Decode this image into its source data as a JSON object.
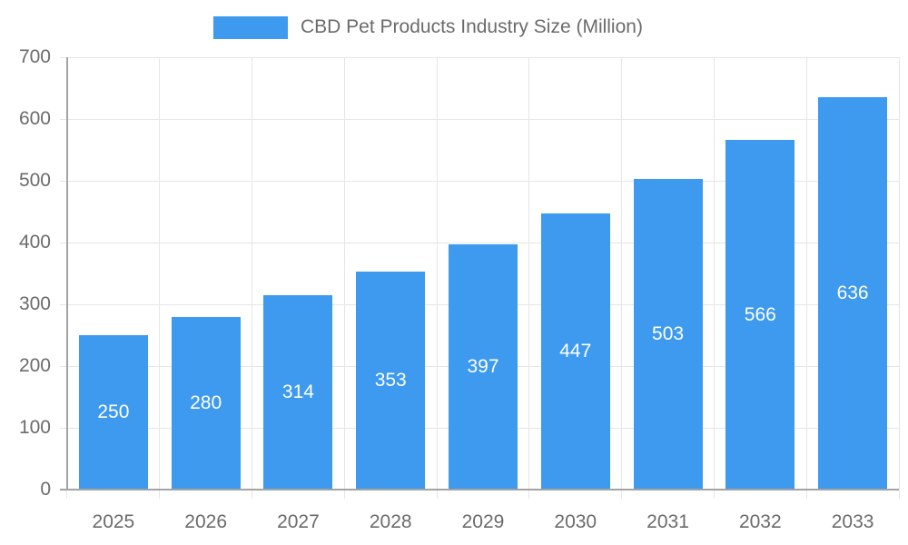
{
  "legend": {
    "label": "CBD Pet Products Industry Size (Million)"
  },
  "chart_data": {
    "type": "bar",
    "title": "CBD Pet Products Industry Size (Million)",
    "categories": [
      "2025",
      "2026",
      "2027",
      "2028",
      "2029",
      "2030",
      "2031",
      "2032",
      "2033"
    ],
    "values": [
      250,
      280,
      314,
      353,
      397,
      447,
      503,
      566,
      636
    ],
    "xlabel": "",
    "ylabel": "",
    "ylim": [
      0,
      700
    ],
    "ytick_step": 100,
    "ytick_labels": [
      "0",
      "100",
      "200",
      "300",
      "400",
      "500",
      "600",
      "700"
    ],
    "grid": true,
    "legend_position": "top",
    "value_labels": "inside-center",
    "colors": {
      "bar": "#3D9AEE",
      "value_label": "#FFFFFF",
      "axis_text": "#6B6B6B",
      "grid_line": "#E6E6E6",
      "axis_line": "#A3A3A3",
      "background": "#FFFFFF"
    }
  }
}
